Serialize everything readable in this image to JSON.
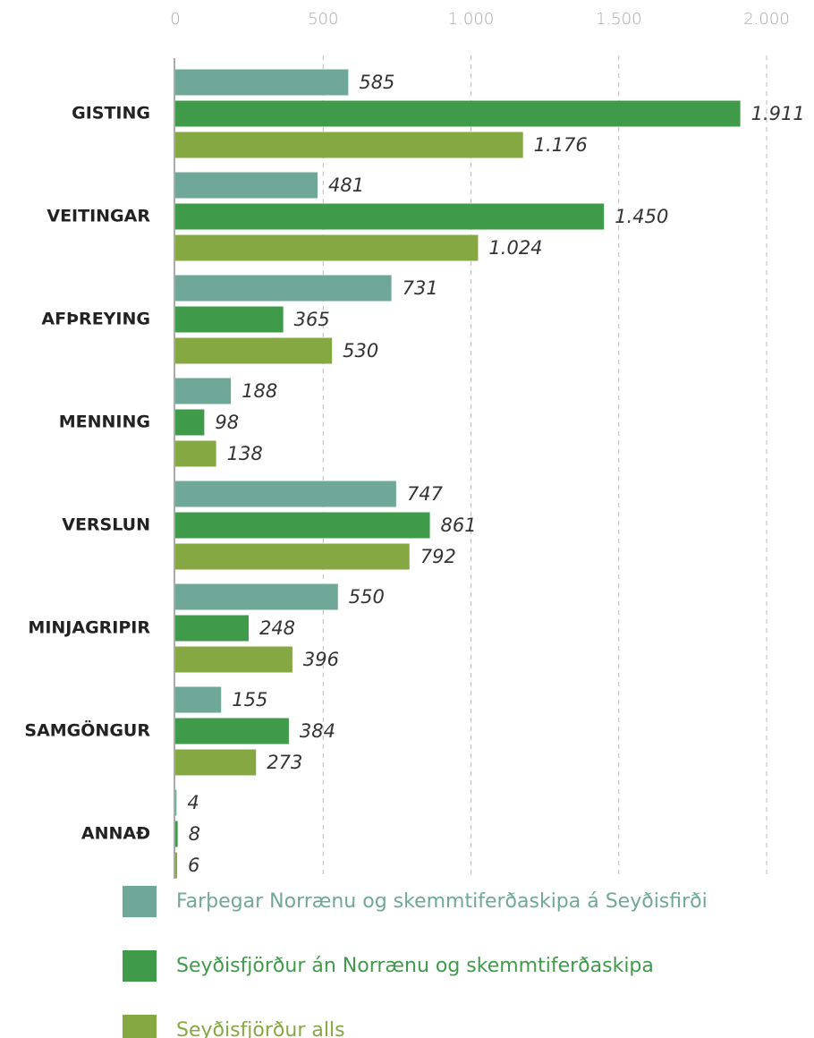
{
  "chart_data": {
    "type": "bar",
    "orientation": "horizontal",
    "categories": [
      "GISTING",
      "VEITINGAR",
      "AFÞREYING",
      "MENNING",
      "VERSLUN",
      "MINJAGRIPIR",
      "SAMGÖNGUR",
      "ANNAÐ"
    ],
    "series": [
      {
        "name": "Farþegar Norrænu og skemmtiferðaskipa á Seyðisfirði",
        "color": "#6fa898",
        "values": [
          585,
          481,
          731,
          188,
          747,
          550,
          155,
          4
        ],
        "value_labels": [
          "585",
          "481",
          "731",
          "188",
          "747",
          "550",
          "155",
          "4"
        ]
      },
      {
        "name": "Seyðisfjörður án Norrænu og skemmtiferðaskipa",
        "color": "#3f9b4a",
        "values": [
          1911,
          1450,
          365,
          98,
          861,
          248,
          384,
          8
        ],
        "value_labels": [
          "1.911",
          "1.450",
          "365",
          "98",
          "861",
          "248",
          "384",
          "8"
        ]
      },
      {
        "name": "Seyðisfjörður alls",
        "color": "#86a843",
        "values": [
          1176,
          1024,
          530,
          138,
          792,
          396,
          273,
          6
        ],
        "value_labels": [
          "1.176",
          "1.024",
          "530",
          "138",
          "792",
          "396",
          "273",
          "6"
        ]
      }
    ],
    "xlim": [
      0,
      2000
    ],
    "xticks": [
      0,
      500,
      {
        "value": 1000,
        "label": "1.000"
      },
      {
        "value": 1500,
        "label": "1.500"
      },
      {
        "value": 2000,
        "label": "2.000"
      }
    ],
    "grid": true,
    "legend": "bottom"
  }
}
